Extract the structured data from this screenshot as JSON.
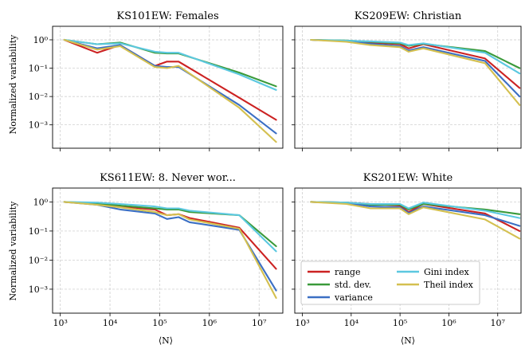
{
  "figure": {
    "ylabel": "Normalized variability",
    "xlabel": "⟨N⟩"
  },
  "legend": {
    "placement": "lower-left of bottom-right panel",
    "entries": [
      "range",
      "std. dev.",
      "variance",
      "Gini index",
      "Theil index"
    ]
  },
  "colors": {
    "range": "#cc2222",
    "std_dev": "#3a9a3a",
    "variance": "#3b6fc4",
    "gini": "#5cc8e0",
    "theil": "#d4c050"
  },
  "chart_data": [
    {
      "type": "line",
      "title": "KS101EW: Females",
      "xscale": "log",
      "yscale": "log",
      "xlim": [
        700,
        30000000
      ],
      "ylim": [
        0.00015,
        3
      ],
      "grid": true,
      "xticks": [
        1000,
        10000,
        100000,
        1000000,
        10000000
      ],
      "xticklabels": [
        "10^3",
        "10^4",
        "10^5",
        "10^6",
        "10^7"
      ],
      "yticks": [
        0.001,
        0.01,
        0.1,
        1
      ],
      "yticklabels": [
        "10^-3",
        "10^-2",
        "10^-1",
        "10^0"
      ],
      "x": [
        1200,
        5500,
        16000,
        80000,
        140000,
        240000,
        4000000,
        22000000
      ],
      "series": [
        {
          "name": "range",
          "color": "#cc2222",
          "values": [
            1.0,
            0.35,
            0.65,
            0.12,
            0.17,
            0.17,
            0.009,
            0.0015
          ]
        },
        {
          "name": "std. dev.",
          "color": "#3a9a3a",
          "values": [
            1.0,
            0.7,
            0.8,
            0.35,
            0.33,
            0.33,
            0.07,
            0.023
          ]
        },
        {
          "name": "variance",
          "color": "#3b6fc4",
          "values": [
            1.0,
            0.5,
            0.65,
            0.12,
            0.11,
            0.11,
            0.005,
            0.0005
          ]
        },
        {
          "name": "Gini index",
          "color": "#5cc8e0",
          "values": [
            1.0,
            0.7,
            0.75,
            0.38,
            0.35,
            0.35,
            0.06,
            0.017
          ]
        },
        {
          "name": "Theil index",
          "color": "#d4c050",
          "values": [
            1.0,
            0.45,
            0.6,
            0.11,
            0.1,
            0.12,
            0.004,
            0.00025
          ]
        }
      ]
    },
    {
      "type": "line",
      "title": "KS209EW: Christian",
      "xscale": "log",
      "yscale": "log",
      "xlim": [
        700,
        30000000
      ],
      "ylim": [
        0.00015,
        3
      ],
      "grid": true,
      "xticks": [
        1000,
        10000,
        100000,
        1000000,
        10000000
      ],
      "xticklabels": [
        "10^3",
        "10^4",
        "10^5",
        "10^6",
        "10^7"
      ],
      "yticks": [
        0.001,
        0.01,
        0.1,
        1
      ],
      "yticklabels": [
        "10^-3",
        "10^-2",
        "10^-1",
        "10^0"
      ],
      "x": [
        1500,
        8000,
        25000,
        100000,
        150000,
        300000,
        5500000,
        28000000
      ],
      "series": [
        {
          "name": "range",
          "color": "#cc2222",
          "values": [
            1.0,
            0.9,
            0.8,
            0.7,
            0.5,
            0.7,
            0.22,
            0.02
          ]
        },
        {
          "name": "std. dev.",
          "color": "#3a9a3a",
          "values": [
            1.0,
            0.95,
            0.85,
            0.75,
            0.62,
            0.72,
            0.4,
            0.1
          ]
        },
        {
          "name": "variance",
          "color": "#3b6fc4",
          "values": [
            1.0,
            0.9,
            0.72,
            0.6,
            0.42,
            0.55,
            0.18,
            0.01
          ]
        },
        {
          "name": "Gini index",
          "color": "#5cc8e0",
          "values": [
            1.0,
            0.93,
            0.88,
            0.8,
            0.65,
            0.75,
            0.35,
            0.065
          ]
        },
        {
          "name": "Theil index",
          "color": "#d4c050",
          "values": [
            1.0,
            0.85,
            0.65,
            0.55,
            0.38,
            0.5,
            0.15,
            0.005
          ]
        }
      ]
    },
    {
      "type": "line",
      "title": "KS611EW: 8. Never wor...",
      "xscale": "log",
      "yscale": "log",
      "xlim": [
        700,
        30000000
      ],
      "ylim": [
        0.00015,
        3
      ],
      "grid": true,
      "xticks": [
        1000,
        10000,
        100000,
        1000000,
        10000000
      ],
      "xticklabels": [
        "10^3",
        "10^4",
        "10^5",
        "10^6",
        "10^7"
      ],
      "yticks": [
        0.001,
        0.01,
        0.1,
        1
      ],
      "yticklabels": [
        "10^-3",
        "10^-2",
        "10^-1",
        "10^0"
      ],
      "x": [
        1200,
        5500,
        16000,
        80000,
        140000,
        240000,
        400000,
        4000000,
        22000000
      ],
      "series": [
        {
          "name": "range",
          "color": "#cc2222",
          "values": [
            1.0,
            0.85,
            0.7,
            0.55,
            0.35,
            0.38,
            0.28,
            0.13,
            0.005
          ]
        },
        {
          "name": "std. dev.",
          "color": "#3a9a3a",
          "values": [
            1.0,
            0.9,
            0.75,
            0.6,
            0.55,
            0.55,
            0.45,
            0.35,
            0.03
          ]
        },
        {
          "name": "variance",
          "color": "#3b6fc4",
          "values": [
            1.0,
            0.8,
            0.55,
            0.4,
            0.26,
            0.3,
            0.2,
            0.11,
            0.0009
          ]
        },
        {
          "name": "Gini index",
          "color": "#5cc8e0",
          "values": [
            1.0,
            0.95,
            0.85,
            0.7,
            0.6,
            0.6,
            0.5,
            0.35,
            0.02
          ]
        },
        {
          "name": "Theil index",
          "color": "#d4c050",
          "values": [
            1.0,
            0.8,
            0.65,
            0.45,
            0.35,
            0.38,
            0.25,
            0.12,
            0.0005
          ]
        }
      ]
    },
    {
      "type": "line",
      "title": "KS201EW: White",
      "xscale": "log",
      "yscale": "log",
      "xlim": [
        700,
        30000000
      ],
      "ylim": [
        0.00015,
        3
      ],
      "grid": true,
      "xticks": [
        1000,
        10000,
        100000,
        1000000,
        10000000
      ],
      "xticklabels": [
        "10^3",
        "10^4",
        "10^5",
        "10^6",
        "10^7"
      ],
      "yticks": [
        0.001,
        0.01,
        0.1,
        1
      ],
      "yticklabels": [
        "10^-3",
        "10^-2",
        "10^-1",
        "10^0"
      ],
      "x": [
        1500,
        8000,
        25000,
        100000,
        150000,
        300000,
        5500000,
        28000000
      ],
      "series": [
        {
          "name": "range",
          "color": "#cc2222",
          "values": [
            1.0,
            0.95,
            0.85,
            0.75,
            0.45,
            0.85,
            0.4,
            0.1
          ]
        },
        {
          "name": "std. dev.",
          "color": "#3a9a3a",
          "values": [
            1.0,
            0.95,
            0.8,
            0.8,
            0.55,
            0.85,
            0.55,
            0.38
          ]
        },
        {
          "name": "variance",
          "color": "#3b6fc4",
          "values": [
            1.0,
            0.9,
            0.7,
            0.65,
            0.42,
            0.7,
            0.35,
            0.15
          ]
        },
        {
          "name": "Gini index",
          "color": "#5cc8e0",
          "values": [
            1.0,
            0.95,
            0.85,
            0.85,
            0.6,
            0.95,
            0.5,
            0.28
          ]
        },
        {
          "name": "Theil index",
          "color": "#d4c050",
          "values": [
            1.0,
            0.85,
            0.6,
            0.6,
            0.38,
            0.65,
            0.25,
            0.055
          ]
        }
      ]
    }
  ]
}
